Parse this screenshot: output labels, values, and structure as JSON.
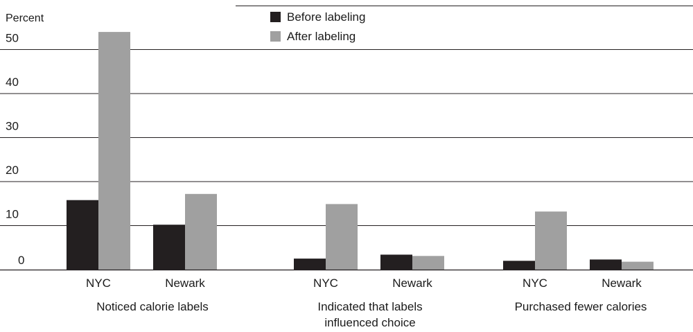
{
  "chart_data": {
    "type": "bar",
    "ylabel": "Percent",
    "ylim": [
      0,
      56
    ],
    "yticks": [
      0,
      10,
      20,
      30,
      40,
      50
    ],
    "grid": true,
    "legend": {
      "placement": "top-center",
      "entries": [
        {
          "name": "Before labeling",
          "color": "#231f20"
        },
        {
          "name": "After labeling",
          "color": "#a0a0a0"
        }
      ]
    },
    "groups": [
      {
        "label_lines": [
          "Noticed calorie labels"
        ],
        "categories": [
          "NYC",
          "Newark"
        ]
      },
      {
        "label_lines": [
          "Indicated that labels",
          "influenced choice"
        ],
        "categories": [
          "NYC",
          "Newark"
        ]
      },
      {
        "label_lines": [
          "Purchased fewer calories"
        ],
        "categories": [
          "NYC",
          "Newark"
        ]
      }
    ],
    "series": [
      {
        "name": "Before labeling",
        "color": "#231f20",
        "values": [
          15.8,
          10.2,
          2.5,
          3.4,
          2.0,
          2.3
        ]
      },
      {
        "name": "After labeling",
        "color": "#a0a0a0",
        "values": [
          54.0,
          17.2,
          14.9,
          3.1,
          13.2,
          1.8
        ]
      }
    ]
  }
}
